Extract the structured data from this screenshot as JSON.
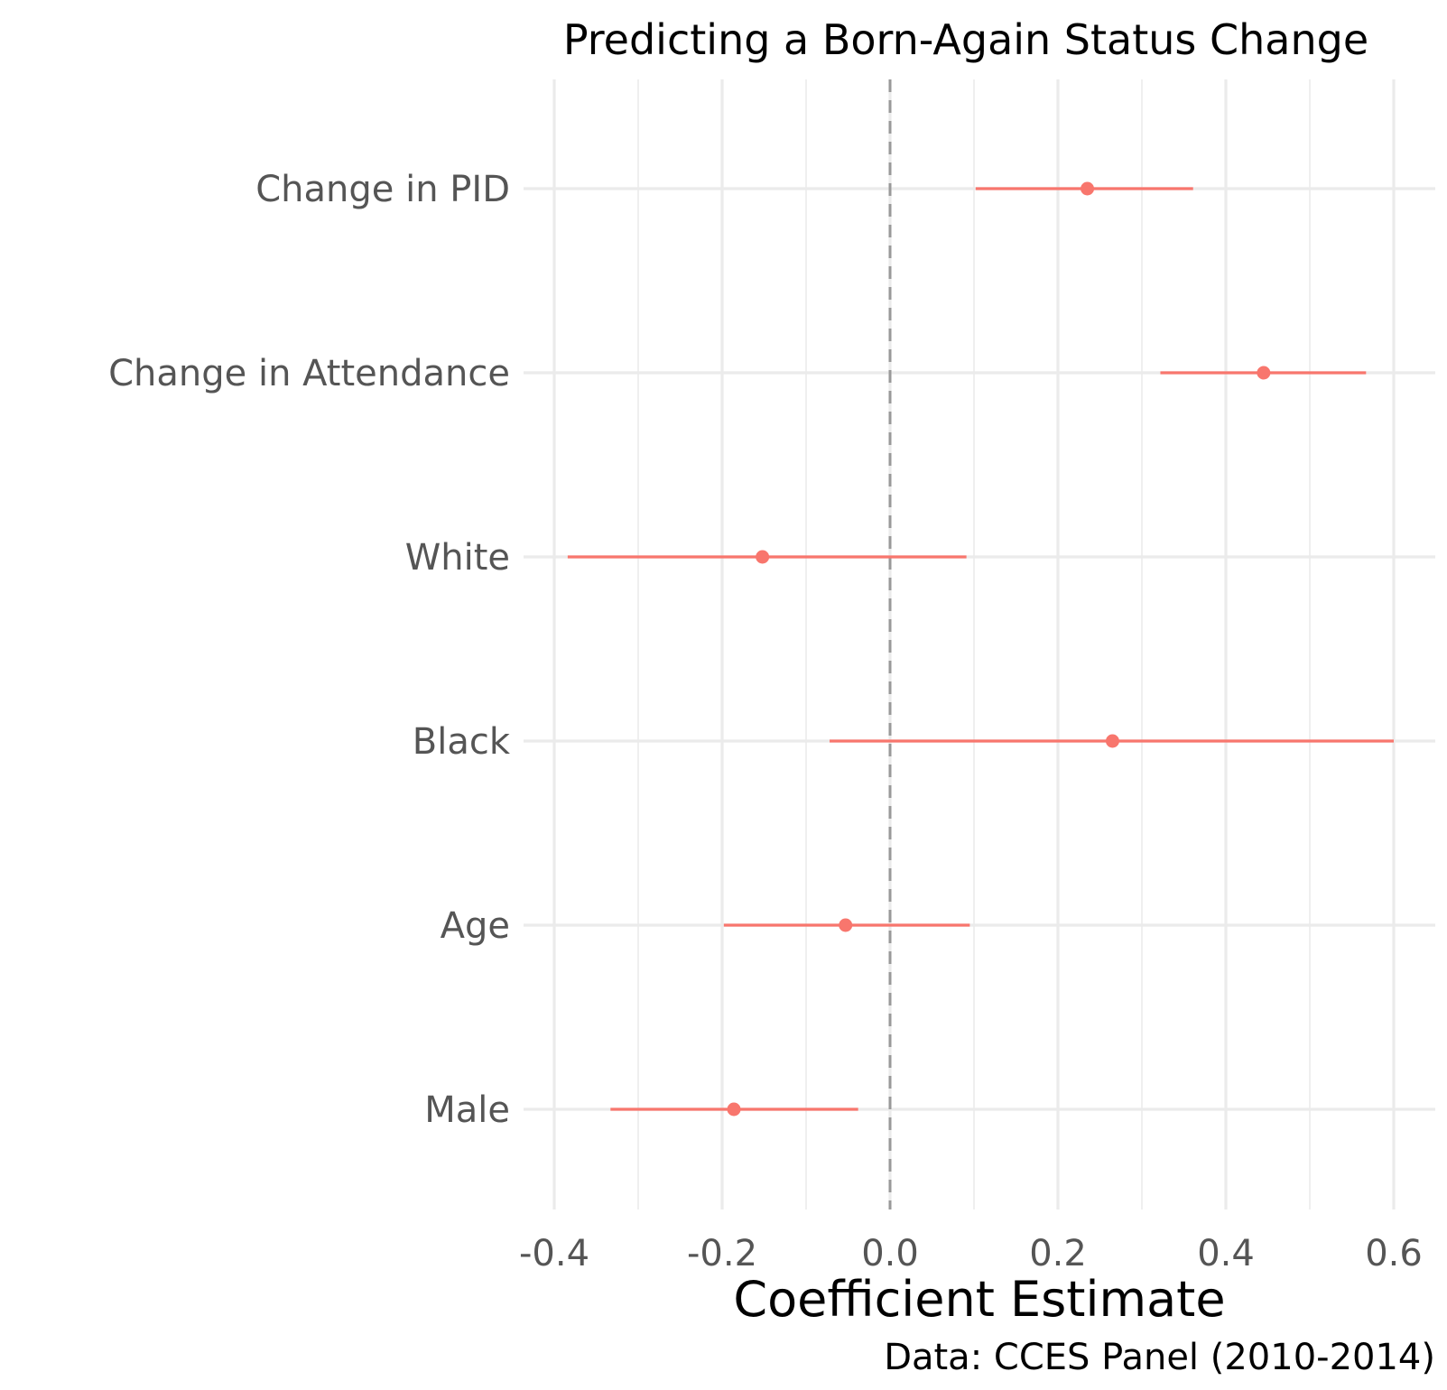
{
  "chart_data": {
    "type": "errorbar",
    "title": "Predicting a Born-Again Status Change",
    "xlabel": "Coefficient Estimate",
    "ylabel": "",
    "caption": "Data: CCES Panel (2010-2014)",
    "xlim": [
      -0.42,
      0.63
    ],
    "x_ticks": [
      -0.4,
      -0.2,
      0.0,
      0.2,
      0.4,
      0.6
    ],
    "x_tick_labels": [
      "-0.4",
      "-0.2",
      "0.0",
      "0.2",
      "0.4",
      "0.6"
    ],
    "reference_line": {
      "x": 0.0,
      "style": "dashed",
      "color": "#999999"
    },
    "grid": true,
    "legend": "none",
    "series_color": "#F8766D",
    "categories": [
      "Change in PID",
      "Change in Attendance",
      "White",
      "Black",
      "Age",
      "Male"
    ],
    "estimates": [
      0.235,
      0.445,
      -0.152,
      0.265,
      -0.053,
      -0.186
    ],
    "lower": [
      0.102,
      0.322,
      -0.384,
      -0.072,
      -0.198,
      -0.333
    ],
    "upper": [
      0.361,
      0.567,
      0.091,
      0.6,
      0.095,
      -0.038
    ]
  }
}
